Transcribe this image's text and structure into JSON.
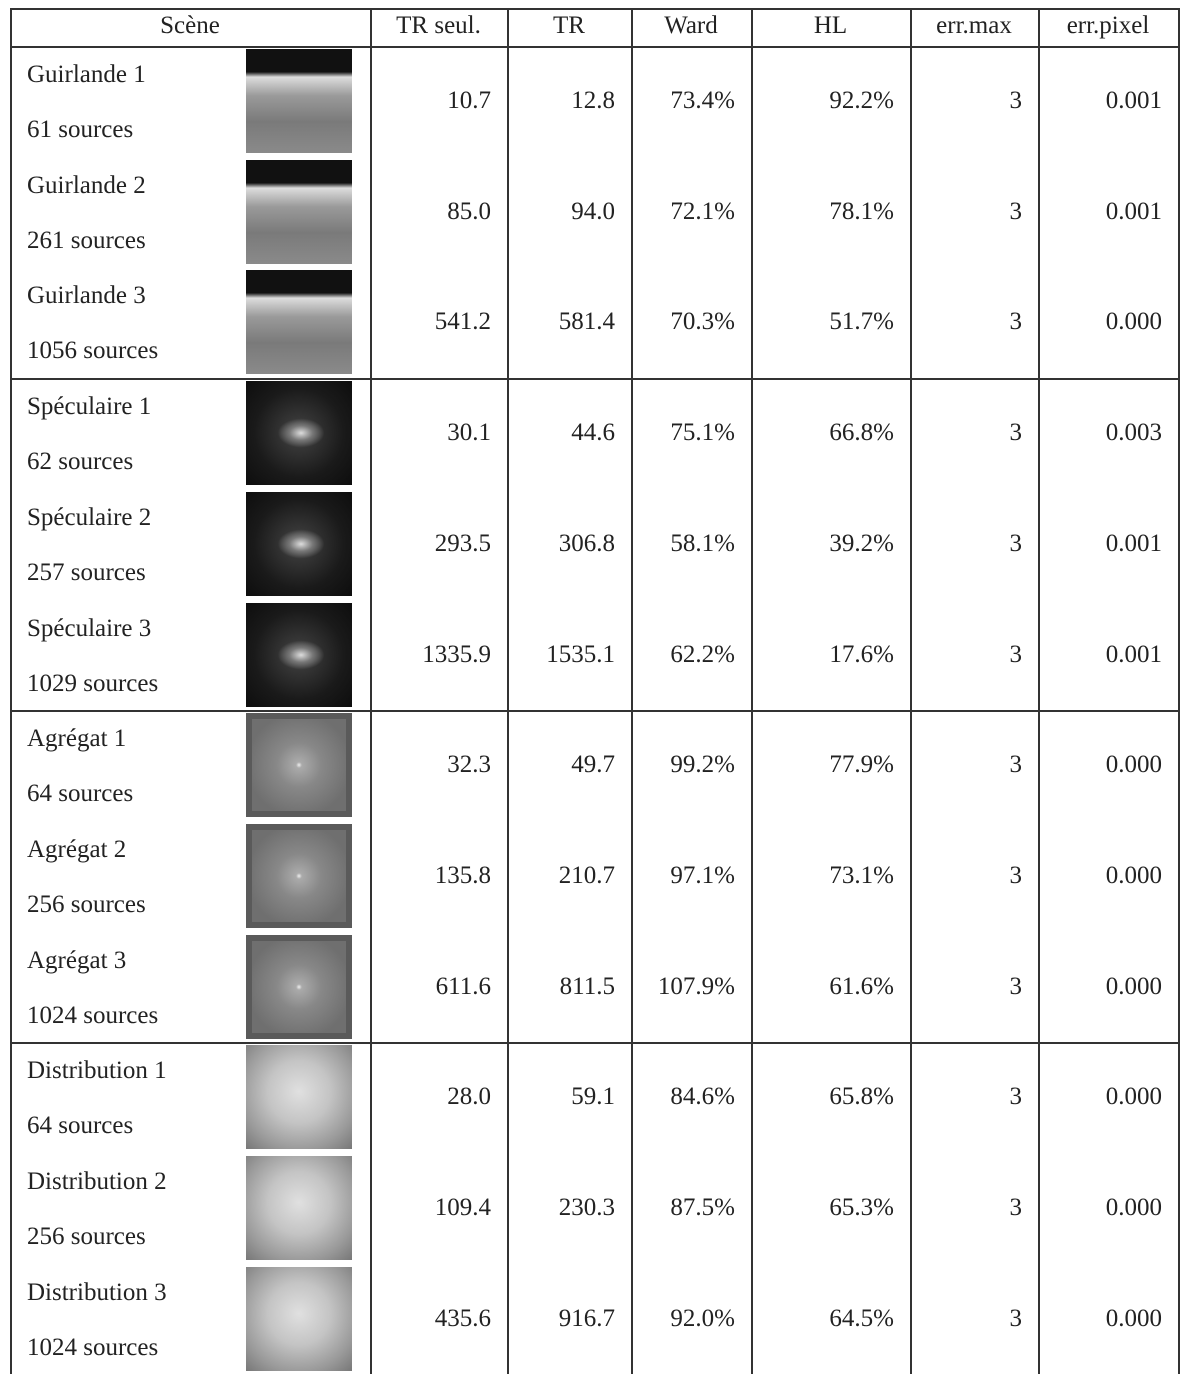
{
  "table": {
    "header": [
      "Scène",
      "TR seul.",
      "TR",
      "Ward",
      "HL",
      "err.max",
      "err.pixel"
    ],
    "groups": [
      {
        "rows": [
          {
            "scene": "Guirlande 1",
            "sources": "61 sources",
            "values": [
              "10.7",
              "12.8",
              "73.4%",
              "92.2%",
              "3",
              "0.001"
            ]
          },
          {
            "scene": "Guirlande 2",
            "sources": "261 sources",
            "values": [
              "85.0",
              "94.0",
              "72.1%",
              "78.1%",
              "3",
              "0.001"
            ]
          },
          {
            "scene": "Guirlande 3",
            "sources": "1056 sources",
            "values": [
              "541.2",
              "581.4",
              "70.3%",
              "51.7%",
              "3",
              "0.000"
            ]
          }
        ]
      },
      {
        "rows": [
          {
            "scene": "Spéculaire 1",
            "sources": "62 sources",
            "values": [
              "30.1",
              "44.6",
              "75.1%",
              "66.8%",
              "3",
              "0.003"
            ]
          },
          {
            "scene": "Spéculaire 2",
            "sources": "257 sources",
            "values": [
              "293.5",
              "306.8",
              "58.1%",
              "39.2%",
              "3",
              "0.001"
            ]
          },
          {
            "scene": "Spéculaire 3",
            "sources": "1029 sources",
            "values": [
              "1335.9",
              "1535.1",
              "62.2%",
              "17.6%",
              "3",
              "0.001"
            ]
          }
        ]
      },
      {
        "rows": [
          {
            "scene": "Agrégat 1",
            "sources": "64 sources",
            "values": [
              "32.3",
              "49.7",
              "99.2%",
              "77.9%",
              "3",
              "0.000"
            ]
          },
          {
            "scene": "Agrégat 2",
            "sources": "256 sources",
            "values": [
              "135.8",
              "210.7",
              "97.1%",
              "73.1%",
              "3",
              "0.000"
            ]
          },
          {
            "scene": "Agrégat 3",
            "sources": "1024 sources",
            "values": [
              "611.6",
              "811.5",
              "107.9%",
              "61.6%",
              "3",
              "0.000"
            ]
          }
        ]
      },
      {
        "rows": [
          {
            "scene": "Distribution 1",
            "sources": "64 sources",
            "values": [
              "28.0",
              "59.1",
              "84.6%",
              "65.8%",
              "3",
              "0.000"
            ]
          },
          {
            "scene": "Distribution 2",
            "sources": "256 sources",
            "values": [
              "109.4",
              "230.3",
              "87.5%",
              "65.3%",
              "3",
              "0.000"
            ]
          },
          {
            "scene": "Distribution 3",
            "sources": "1024 sources",
            "values": [
              "435.6",
              "916.7",
              "92.0%",
              "64.5%",
              "3",
              "0.000"
            ]
          }
        ]
      }
    ]
  }
}
